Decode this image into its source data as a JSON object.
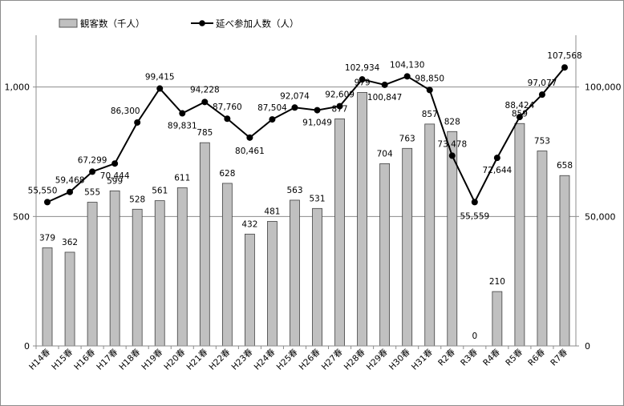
{
  "chart_data": {
    "type": "bar+line",
    "categories": [
      "H14春",
      "H15春",
      "H16春",
      "H17春",
      "H18春",
      "H19春",
      "H20春",
      "H21春",
      "H22春",
      "H23春",
      "H24春",
      "H25春",
      "H26春",
      "H27春",
      "H28春",
      "H29春",
      "H30春",
      "H31春",
      "R2春",
      "R3春",
      "R4春",
      "R5春",
      "R6春",
      "R7春"
    ],
    "series": [
      {
        "name": "観客数（千人）",
        "type": "bar",
        "axis": "left",
        "color": "#c0c0c0",
        "values": [
          379,
          362,
          555,
          599,
          528,
          561,
          611,
          785,
          628,
          432,
          481,
          563,
          531,
          877,
          979,
          704,
          763,
          857,
          828,
          0,
          210,
          859,
          753,
          658
        ],
        "labels": [
          "379",
          "362",
          "555",
          "599",
          "528",
          "561",
          "611",
          "785",
          "628",
          "432",
          "481",
          "563",
          "531",
          "877",
          "979",
          "704",
          "763",
          "857",
          "828",
          "0",
          "210",
          "859",
          "753",
          "658"
        ]
      },
      {
        "name": "延べ参加人数（人）",
        "type": "line",
        "axis": "right",
        "color": "#000000",
        "values": [
          55550,
          59468,
          67299,
          70444,
          86300,
          99415,
          89831,
          94228,
          87760,
          80461,
          87504,
          92074,
          91049,
          92609,
          102934,
          100847,
          104130,
          98850,
          73478,
          55559,
          72644,
          88424,
          97077,
          107568
        ],
        "labels": [
          "55,550",
          "59,468",
          "67,299",
          "70,444",
          "86,300",
          "99,415",
          "89,831",
          "94,228",
          "87,760",
          "80,461",
          "87,504",
          "92,074",
          "91,049",
          "92,609",
          "102,934",
          "100,847",
          "104,130",
          "98,850",
          "73,478",
          "55,559",
          "72,644",
          "88,424",
          "97,077",
          "107,568"
        ]
      }
    ],
    "left_axis": {
      "range": [
        0,
        1200
      ],
      "ticks": [
        0,
        500,
        1000
      ],
      "tick_labels": [
        "0",
        "500",
        "1,000"
      ]
    },
    "right_axis": {
      "range": [
        0,
        120000
      ],
      "ticks": [
        0,
        50000,
        100000
      ],
      "tick_labels": [
        "0",
        "50,000",
        "100,000"
      ]
    },
    "grid": true,
    "legend": {
      "placement": "top-left"
    }
  }
}
